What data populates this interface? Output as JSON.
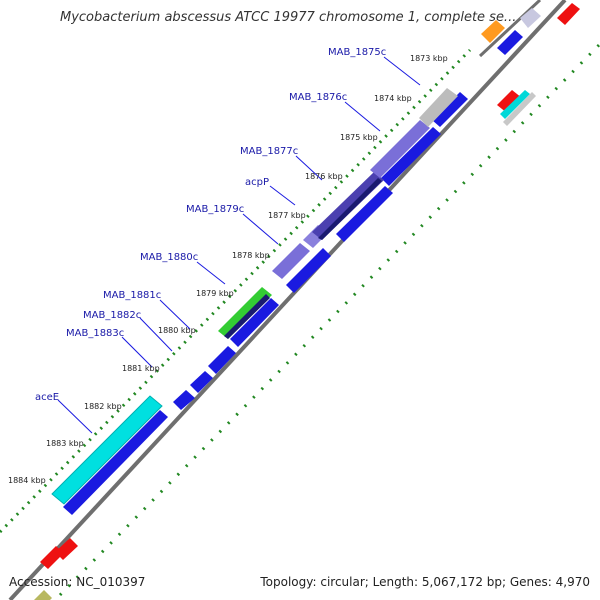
{
  "header": {
    "title": "Mycobacterium abscessus ATCC 19977 chromosome 1, complete se..."
  },
  "footer": {
    "accession": "Accession: NC_010397",
    "summary": "Topology: circular; Length: 5,067,172 bp; Genes: 4,970"
  },
  "colors": {
    "backbone": "#808080",
    "cds_forward": "#1010e0",
    "cds_highlight": "#00c0c0",
    "cds_purple": "#7b6ed6",
    "cds_gray": "#c0c0c0",
    "cds_green": "#33cc33",
    "cds_navy": "#1a1a70",
    "trna_red": "#ee1111",
    "orange": "#ff9a20",
    "gc_dots": "#228822",
    "label_text": "#1a1aa8"
  },
  "gene_labels": [
    "MAB_1875c",
    "MAB_1876c",
    "MAB_1877c",
    "acpP",
    "MAB_1879c",
    "MAB_1880c",
    "MAB_1881c",
    "MAB_1882c",
    "MAB_1883c",
    "aceE"
  ],
  "tick_labels": [
    "1873 kbp",
    "1874 kbp",
    "1875 kbp",
    "1876 kbp",
    "1877 kbp",
    "1878 kbp",
    "1879 kbp",
    "1880 kbp",
    "1881 kbp",
    "1882 kbp",
    "1883 kbp",
    "1884 kbp"
  ]
}
